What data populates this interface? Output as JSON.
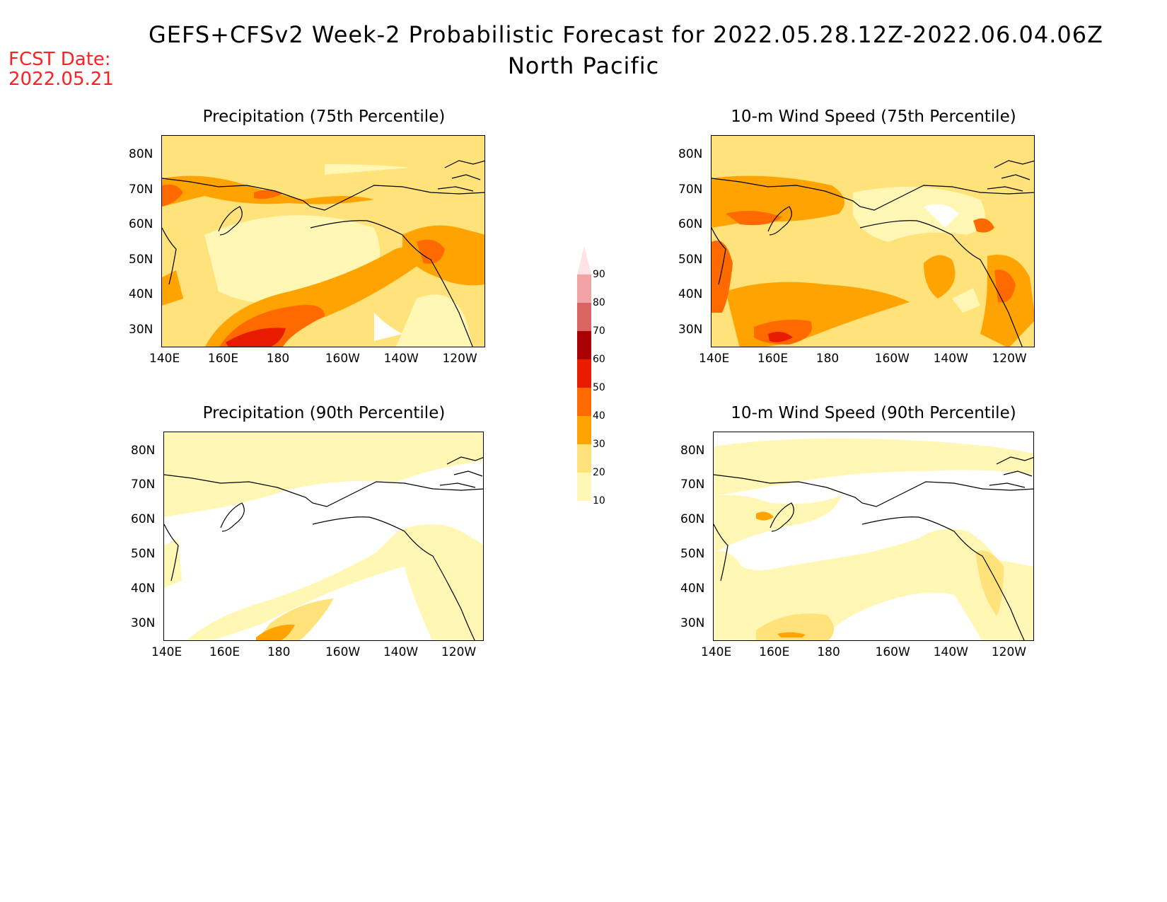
{
  "header": {
    "title": "GEFS+CFSv2 Week-2 Probabilistic Forecast for 2022.05.28.12Z-2022.06.04.06Z",
    "region": "North Pacific",
    "fcst_label": "FCST Date:",
    "fcst_date": "2022.05.21",
    "fcst_color": "#ff2020"
  },
  "lon_ticks": [
    "140E",
    "160E",
    "180",
    "160W",
    "140W",
    "120W"
  ],
  "lat_ticks": [
    "80N",
    "70N",
    "60N",
    "50N",
    "40N",
    "30N"
  ],
  "panels": [
    {
      "id": "precip75",
      "title": "Precipitation (75th Percentile)"
    },
    {
      "id": "wind75",
      "title": "10-m Wind Speed (75th Percentile)"
    },
    {
      "id": "precip90",
      "title": "Precipitation (90th Percentile)"
    },
    {
      "id": "wind90",
      "title": "10-m Wind Speed (90th Percentile)"
    }
  ],
  "colorbar": {
    "levels": [
      "10",
      "20",
      "30",
      "40",
      "50",
      "60",
      "70",
      "80",
      "90"
    ],
    "colors": [
      "#fff7b3",
      "#ffe27a",
      "#ffa300",
      "#ff6a00",
      "#e81a00",
      "#a80000",
      "#d96464",
      "#f2a3a3",
      "#fde3e3"
    ]
  }
}
